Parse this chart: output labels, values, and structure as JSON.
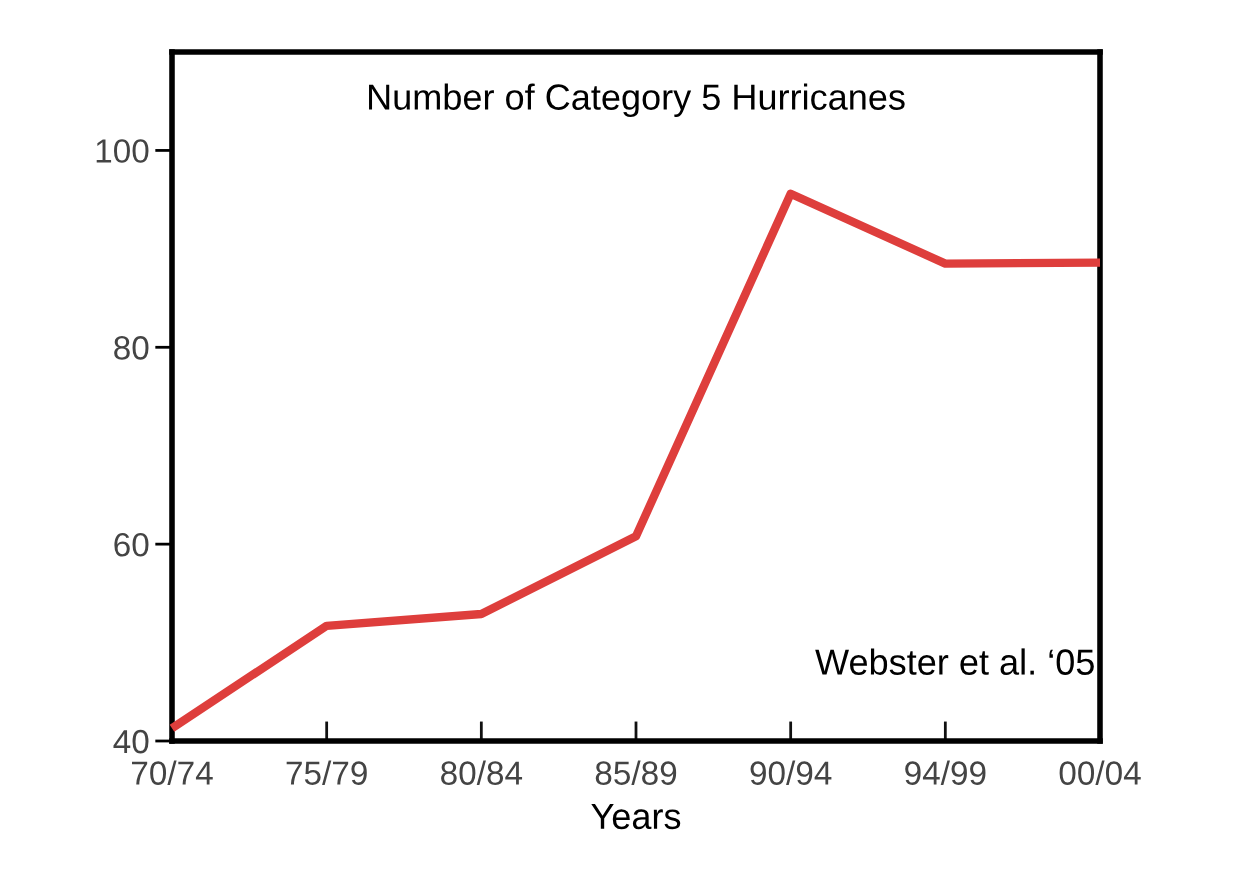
{
  "chart_data": {
    "type": "line",
    "title": "Number of Category 5 Hurricanes",
    "xlabel": "Years",
    "categories": [
      "70/74",
      "75/79",
      "80/84",
      "85/89",
      "90/94",
      "94/99",
      "00/04"
    ],
    "series": [
      {
        "color": "#de3e3c",
        "values": [
          41.3,
          51.7,
          52.9,
          60.8,
          95.6,
          88.5,
          88.6
        ]
      }
    ],
    "ylim": [
      40,
      110
    ],
    "yticks": [
      40,
      60,
      80,
      100
    ],
    "annotations": [
      "Webster et al. ‘05"
    ],
    "grid": false,
    "legend": false,
    "marker": "none",
    "line_style": "solid"
  }
}
